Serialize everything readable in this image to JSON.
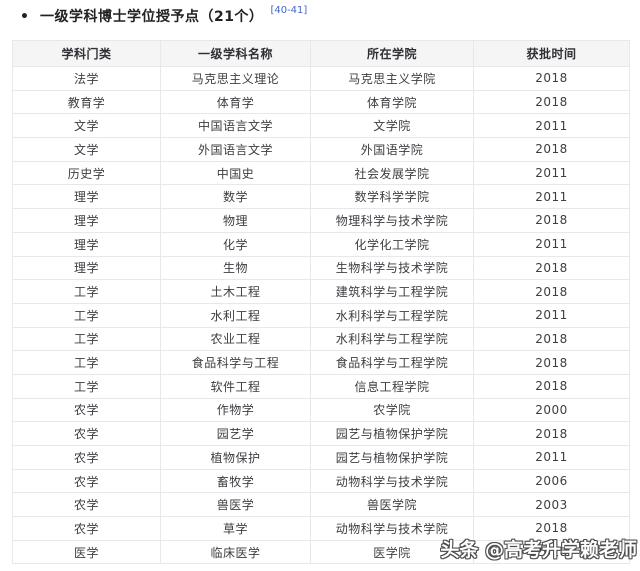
{
  "page": {
    "title": {
      "bullet": "•",
      "text": "一级学科博士学位授予点（21个）",
      "reference": "[40-41]"
    },
    "table": {
      "headers": [
        "学科门类",
        "一级学科名称",
        "所在学院",
        "获批时间"
      ],
      "rows": [
        {
          "category": "法学",
          "discipline": "马克思主义理论",
          "college": "马克思主义学院",
          "year": "2018"
        },
        {
          "category": "教育学",
          "discipline": "体育学",
          "college": "体育学院",
          "year": "2018"
        },
        {
          "category": "文学",
          "discipline": "中国语言文学",
          "college": "文学院",
          "year": "2011"
        },
        {
          "category": "文学",
          "discipline": "外国语言文学",
          "college": "外国语学院",
          "year": "2018"
        },
        {
          "category": "历史学",
          "discipline": "中国史",
          "college": "社会发展学院",
          "year": "2011"
        },
        {
          "category": "理学",
          "discipline": "数学",
          "college": "数学科学学院",
          "year": "2011"
        },
        {
          "category": "理学",
          "discipline": "物理",
          "college": "物理科学与技术学院",
          "year": "2018"
        },
        {
          "category": "理学",
          "discipline": "化学",
          "college": "化学化工学院",
          "year": "2011"
        },
        {
          "category": "理学",
          "discipline": "生物",
          "college": "生物科学与技术学院",
          "year": "2018"
        },
        {
          "category": "工学",
          "discipline": "土木工程",
          "college": "建筑科学与工程学院",
          "year": "2018"
        },
        {
          "category": "工学",
          "discipline": "水利工程",
          "college": "水利科学与工程学院",
          "year": "2011"
        },
        {
          "category": "工学",
          "discipline": "农业工程",
          "college": "水利科学与工程学院",
          "year": "2018"
        },
        {
          "category": "工学",
          "discipline": "食品科学与工程",
          "college": "食品科学与工程学院",
          "year": "2018"
        },
        {
          "category": "工学",
          "discipline": "软件工程",
          "college": "信息工程学院",
          "year": "2018"
        },
        {
          "category": "农学",
          "discipline": "作物学",
          "college": "农学院",
          "year": "2000"
        },
        {
          "category": "农学",
          "discipline": "园艺学",
          "college": "园艺与植物保护学院",
          "year": "2018"
        },
        {
          "category": "农学",
          "discipline": "植物保护",
          "college": "园艺与植物保护学院",
          "year": "2011"
        },
        {
          "category": "农学",
          "discipline": "畜牧学",
          "college": "动物科学与技术学院",
          "year": "2006"
        },
        {
          "category": "农学",
          "discipline": "兽医学",
          "college": "兽医学院",
          "year": "2003"
        },
        {
          "category": "农学",
          "discipline": "草学",
          "college": "动物科学与技术学院",
          "year": "2018"
        },
        {
          "category": "医学",
          "discipline": "临床医学",
          "college": "医学院",
          "year": "2018"
        }
      ]
    },
    "watermark": {
      "text": "头条 @高考升学赖老师"
    },
    "colors": {
      "link_blue": "#4566c8",
      "header_bg": "#f5f5f6",
      "table_border": "#e8e8ea",
      "cell_text": "#3d3d42",
      "watermark_fill": "#ffffff",
      "watermark_outline": "#4d4d4d"
    }
  }
}
